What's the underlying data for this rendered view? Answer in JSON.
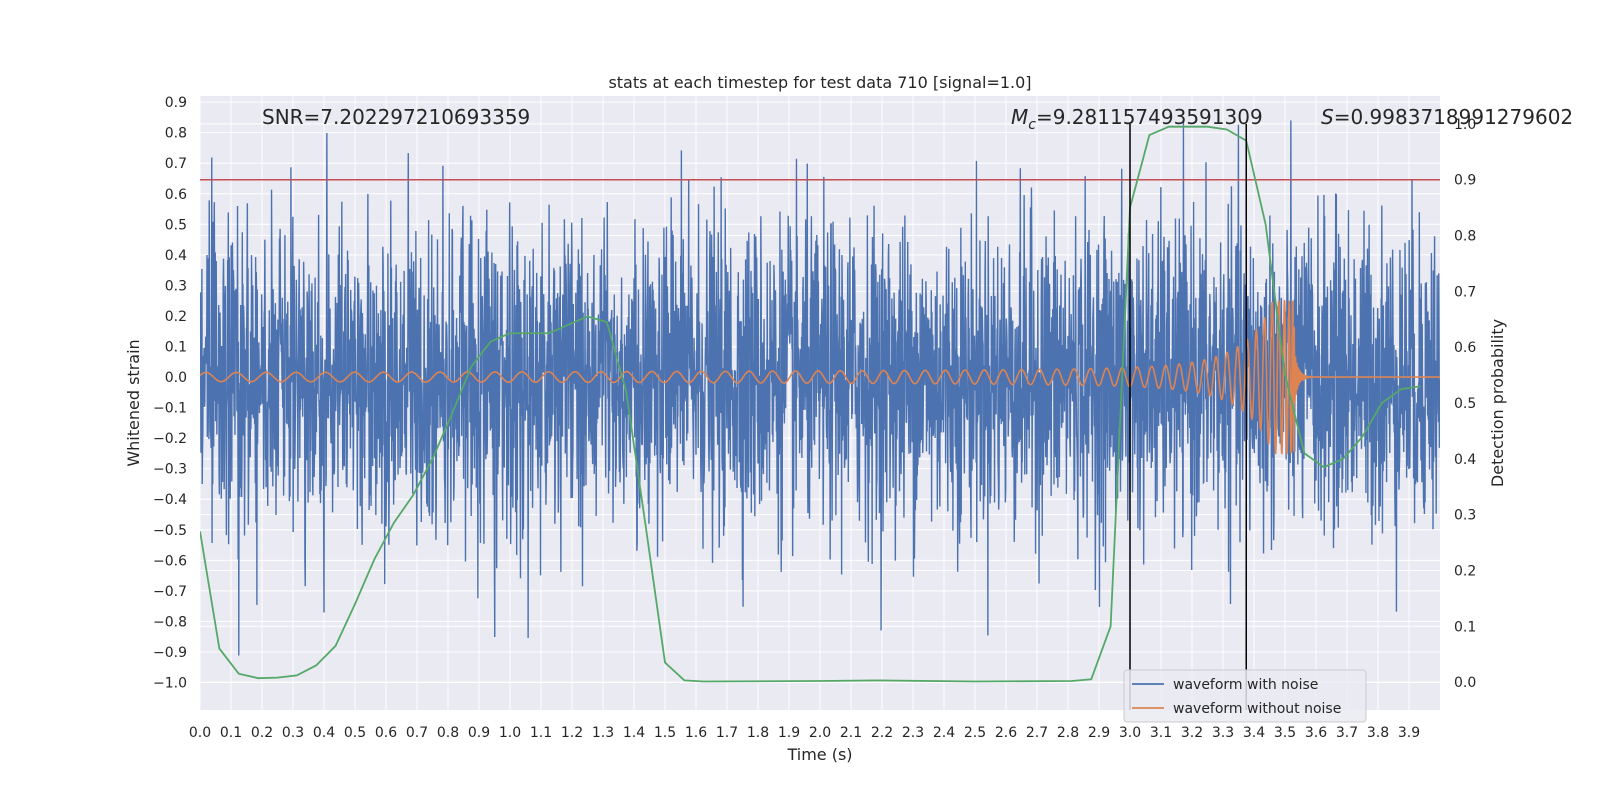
{
  "chart_data": {
    "type": "line",
    "title": "stats at each timestep for test data 710 [signal=1.0]",
    "xlabel": "Time (s)",
    "ylabel": "Whitened strain",
    "y2label": "Detection probability",
    "xlim": [
      0.0,
      4.0
    ],
    "ylim": [
      -1.09,
      0.92
    ],
    "y2lim": [
      -0.05,
      1.05
    ],
    "xticks": [
      "0.0",
      "0.1",
      "0.2",
      "0.3",
      "0.4",
      "0.5",
      "0.6",
      "0.7",
      "0.8",
      "0.9",
      "1.0",
      "1.1",
      "1.2",
      "1.3",
      "1.4",
      "1.5",
      "1.6",
      "1.7",
      "1.8",
      "1.9",
      "2.0",
      "2.1",
      "2.2",
      "2.3",
      "2.4",
      "2.5",
      "2.6",
      "2.7",
      "2.8",
      "2.9",
      "3.0",
      "3.1",
      "3.2",
      "3.3",
      "3.4",
      "3.5",
      "3.6",
      "3.7",
      "3.8",
      "3.9"
    ],
    "yticks": [
      "0.9",
      "0.8",
      "0.7",
      "0.6",
      "0.5",
      "0.4",
      "0.3",
      "0.2",
      "0.1",
      "0.0",
      "−0.1",
      "−0.2",
      "−0.3",
      "−0.4",
      "−0.5",
      "−0.6",
      "−0.7",
      "−0.8",
      "−0.9",
      "−1.0"
    ],
    "y2ticks": [
      "1.0",
      "0.9",
      "0.8",
      "0.7",
      "0.6",
      "0.5",
      "0.4",
      "0.3",
      "0.2",
      "0.1",
      "0.0"
    ],
    "annotations": {
      "snr": "SNR=7.202297210693359",
      "mc_symbol": "M",
      "mc_sub": "c",
      "mc_value": "=9.281157493591309",
      "s_symbol": "S",
      "s_value": "=0.9983718991279602"
    },
    "legend": {
      "position": "lower-right",
      "entries": [
        {
          "label": "waveform with noise",
          "color": "#4c72b0"
        },
        {
          "label": "waveform without noise",
          "color": "#dd8452"
        }
      ]
    },
    "threshold_y2": 0.9,
    "vlines_x": [
      3.0,
      3.375
    ],
    "noise": {
      "color": "#4c72b0",
      "samples": 3900,
      "std": 0.25
    },
    "waveform": {
      "color": "#dd8452",
      "merger_time": 3.53,
      "peak": 0.25,
      "base_amp": 0.015
    },
    "probability_series": {
      "color": "#55a868",
      "x": [
        0.0,
        0.0625,
        0.125,
        0.1875,
        0.25,
        0.3125,
        0.375,
        0.4375,
        0.5,
        0.5625,
        0.625,
        0.6875,
        0.75,
        0.8125,
        0.875,
        0.9375,
        1.0,
        1.0625,
        1.125,
        1.1875,
        1.25,
        1.3125,
        1.375,
        1.4375,
        1.5,
        1.5625,
        1.625,
        2.0,
        2.1875,
        2.5,
        2.8125,
        2.875,
        2.9375,
        3.0,
        3.0625,
        3.125,
        3.1875,
        3.25,
        3.3125,
        3.375,
        3.4375,
        3.5,
        3.5625,
        3.625,
        3.6875,
        3.75,
        3.8125,
        3.875,
        3.9375
      ],
      "values": [
        0.27,
        0.06,
        0.015,
        0.007,
        0.008,
        0.012,
        0.03,
        0.065,
        0.14,
        0.22,
        0.285,
        0.335,
        0.4,
        0.48,
        0.565,
        0.61,
        0.625,
        0.625,
        0.625,
        0.64,
        0.655,
        0.645,
        0.52,
        0.28,
        0.035,
        0.003,
        0.001,
        0.002,
        0.003,
        0.001,
        0.002,
        0.005,
        0.1,
        0.85,
        0.98,
        0.995,
        0.995,
        0.995,
        0.99,
        0.97,
        0.82,
        0.55,
        0.41,
        0.385,
        0.4,
        0.44,
        0.5,
        0.525,
        0.53
      ]
    },
    "colors": {
      "background": "#eaeaf2",
      "grid": "#ffffff",
      "threshold": "#c44e52",
      "vline": "#000000"
    }
  }
}
